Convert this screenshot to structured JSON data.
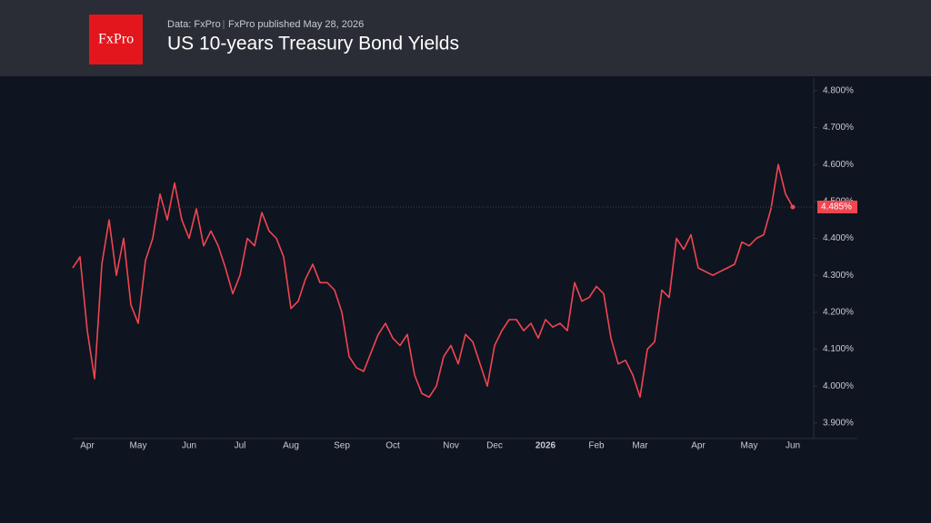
{
  "header": {
    "logo": "FxPro",
    "source": "Data: FxPro",
    "published": "FxPro published May 28, 2026"
  },
  "chart_data": {
    "type": "line",
    "title": "US 10-years Treasury Bond Yields",
    "categories": [
      null,
      null,
      "Apr",
      null,
      null,
      null,
      null,
      null,
      null,
      "May",
      null,
      null,
      null,
      null,
      null,
      null,
      "Jun",
      null,
      null,
      null,
      null,
      null,
      null,
      "Jul",
      null,
      null,
      null,
      null,
      null,
      null,
      "Aug",
      null,
      null,
      null,
      null,
      null,
      null,
      "Sep",
      null,
      null,
      null,
      null,
      null,
      null,
      "Oct",
      null,
      null,
      null,
      null,
      null,
      null,
      null,
      "Nov",
      null,
      null,
      null,
      null,
      null,
      "Dec",
      null,
      null,
      null,
      null,
      null,
      null,
      "2026",
      null,
      null,
      null,
      null,
      null,
      null,
      "Feb",
      null,
      null,
      null,
      null,
      null,
      "Mar",
      null,
      null,
      null,
      null,
      null,
      null,
      null,
      "Apr",
      null,
      null,
      null,
      null,
      null,
      null,
      "May",
      null,
      null,
      null,
      null,
      null,
      "Jun"
    ],
    "series": [
      {
        "name": "US 10Y",
        "color": "#f0464f",
        "values": [
          4.32,
          4.35,
          4.15,
          4.02,
          4.33,
          4.45,
          4.3,
          4.4,
          4.22,
          4.17,
          4.34,
          4.4,
          4.52,
          4.45,
          4.55,
          4.45,
          4.4,
          4.48,
          4.38,
          4.42,
          4.38,
          4.32,
          4.25,
          4.3,
          4.4,
          4.38,
          4.47,
          4.42,
          4.4,
          4.35,
          4.21,
          4.23,
          4.29,
          4.33,
          4.28,
          4.28,
          4.26,
          4.2,
          4.08,
          4.05,
          4.04,
          4.09,
          4.14,
          4.17,
          4.13,
          4.11,
          4.14,
          4.03,
          3.98,
          3.97,
          4.0,
          4.08,
          4.11,
          4.06,
          4.14,
          4.12,
          4.06,
          4.0,
          4.11,
          4.15,
          4.18,
          4.18,
          4.15,
          4.17,
          4.13,
          4.18,
          4.16,
          4.17,
          4.15,
          4.28,
          4.23,
          4.24,
          4.27,
          4.25,
          4.13,
          4.06,
          4.07,
          4.03,
          3.97,
          4.1,
          4.12,
          4.26,
          4.24,
          4.4,
          4.37,
          4.41,
          4.32,
          4.31,
          4.3,
          4.31,
          4.32,
          4.33,
          4.39,
          4.38,
          4.4,
          4.41,
          4.48,
          4.6,
          4.52,
          4.485
        ],
        "value_labels": [
          null,
          null,
          null,
          null,
          null,
          null,
          null,
          null,
          null,
          null,
          null,
          null,
          null,
          null,
          null,
          null,
          null,
          null,
          null,
          null,
          null,
          null,
          null,
          null,
          null,
          null,
          null,
          null,
          null,
          null,
          null,
          null,
          null,
          null,
          null,
          null,
          null,
          null,
          null,
          null,
          null,
          null,
          null,
          null,
          null,
          null,
          null,
          null,
          null,
          null,
          null,
          null,
          null,
          null,
          null,
          null,
          null,
          null,
          null,
          null,
          null,
          null,
          null,
          null,
          null,
          null,
          null,
          null,
          null,
          null,
          null,
          null,
          null,
          null,
          null,
          null,
          null,
          null,
          null,
          null,
          null,
          null,
          null,
          null,
          null,
          null,
          null,
          null,
          null,
          null,
          null,
          null,
          null,
          null,
          null,
          null,
          null,
          null,
          null,
          "4.485%"
        ]
      }
    ],
    "ylim": [
      3.858,
      4.834
    ],
    "yticks": [
      {
        "value": 3.9,
        "label": "3.900%"
      },
      {
        "value": 4.0,
        "label": "4.000%"
      },
      {
        "value": 4.1,
        "label": "4.100%"
      },
      {
        "value": 4.2,
        "label": "4.200%"
      },
      {
        "value": 4.3,
        "label": "4.300%"
      },
      {
        "value": 4.4,
        "label": "4.400%"
      },
      {
        "value": 4.5,
        "label": "4.500%"
      },
      {
        "value": 4.6,
        "label": "4.600%"
      },
      {
        "value": 4.7,
        "label": "4.700%"
      },
      {
        "value": 4.8,
        "label": "4.800%"
      }
    ],
    "grid": false
  }
}
